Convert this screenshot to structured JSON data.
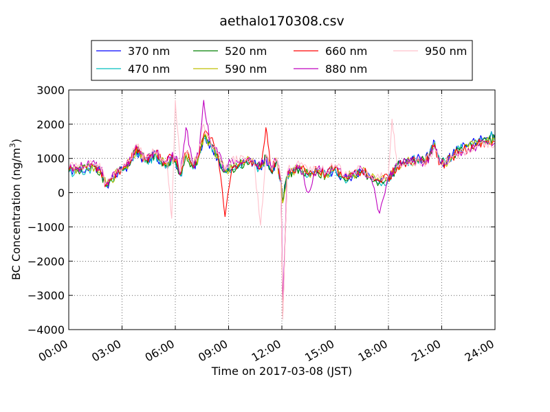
{
  "chart_data": {
    "type": "line",
    "title": "aethalo170308.csv",
    "xlabel": "Time on 2017-03-08 (JST)",
    "ylabel": "BC Concentration (ng/m",
    "ylabel_sup": "3",
    "ylabel_close": ")",
    "xlim": [
      0,
      24
    ],
    "ylim": [
      -4000,
      3000
    ],
    "x_ticks": [
      0,
      3,
      6,
      9,
      12,
      15,
      18,
      21,
      24
    ],
    "x_tick_labels": [
      "00:00",
      "03:00",
      "06:00",
      "09:00",
      "12:00",
      "15:00",
      "18:00",
      "21:00",
      "24:00"
    ],
    "y_ticks": [
      -4000,
      -3000,
      -2000,
      -1000,
      0,
      1000,
      2000,
      3000
    ],
    "y_tick_labels": [
      "−4000",
      "−3000",
      "−2000",
      "−1000",
      "0",
      "1000",
      "2000",
      "3000"
    ],
    "grid": true,
    "legend_placement": "top-center above plot",
    "keypoints_x": [
      0,
      0.5,
      1,
      1.5,
      1.8,
      2.1,
      2.4,
      2.8,
      3.2,
      3.5,
      3.8,
      4.0,
      4.3,
      4.6,
      4.9,
      5.2,
      5.5,
      5.8,
      6.0,
      6.3,
      6.6,
      7.0,
      7.3,
      7.6,
      8.0,
      8.4,
      8.8,
      9.2,
      9.6,
      10.0,
      10.4,
      10.8,
      11.1,
      11.4,
      11.7,
      11.95,
      12.05,
      12.3,
      12.6,
      13.0,
      13.5,
      14.0,
      14.5,
      15.0,
      15.5,
      16.0,
      16.5,
      17.0,
      17.5,
      18.0,
      18.2,
      18.5,
      18.8,
      19.2,
      19.6,
      20.0,
      20.3,
      20.6,
      20.9,
      21.2,
      21.6,
      22.0,
      22.5,
      23.0,
      23.5,
      24.0
    ],
    "series": [
      {
        "name": "370 nm",
        "color": "#0000ff",
        "values": [
          600,
          650,
          700,
          750,
          600,
          200,
          350,
          600,
          700,
          900,
          1200,
          1100,
          900,
          1000,
          1100,
          900,
          800,
          1000,
          900,
          500,
          1100,
          700,
          1000,
          1600,
          1400,
          1000,
          600,
          700,
          800,
          900,
          850,
          700,
          1000,
          600,
          900,
          300,
          -200,
          500,
          600,
          700,
          500,
          600,
          500,
          700,
          400,
          500,
          600,
          400,
          300,
          400,
          500,
          800,
          900,
          950,
          1000,
          950,
          1100,
          1500,
          900,
          900,
          1100,
          1300,
          1400,
          1500,
          1600,
          1700
        ]
      },
      {
        "name": "470 nm",
        "color": "#00bfbf",
        "values": [
          600,
          640,
          680,
          730,
          580,
          180,
          340,
          590,
          690,
          880,
          1180,
          1080,
          880,
          980,
          1080,
          880,
          790,
          980,
          890,
          480,
          1080,
          690,
          990,
          1580,
          1380,
          980,
          590,
          690,
          790,
          880,
          840,
          690,
          990,
          590,
          880,
          280,
          -250,
          480,
          590,
          690,
          480,
          590,
          480,
          690,
          390,
          480,
          590,
          390,
          280,
          380,
          480,
          780,
          880,
          930,
          980,
          930,
          1080,
          1480,
          880,
          880,
          1080,
          1280,
          1380,
          1480,
          1580,
          1680
        ]
      },
      {
        "name": "520 nm",
        "color": "#007f00",
        "values": [
          620,
          660,
          700,
          740,
          600,
          200,
          360,
          610,
          710,
          900,
          1250,
          1150,
          920,
          1020,
          1120,
          920,
          820,
          1020,
          920,
          520,
          1120,
          720,
          1020,
          1620,
          1420,
          1020,
          610,
          710,
          810,
          920,
          860,
          710,
          1020,
          610,
          920,
          320,
          -220,
          510,
          610,
          710,
          510,
          610,
          510,
          710,
          410,
          510,
          610,
          410,
          310,
          410,
          510,
          790,
          870,
          920,
          970,
          920,
          1070,
          1450,
          870,
          870,
          1070,
          1250,
          1350,
          1450,
          1550,
          1600
        ]
      },
      {
        "name": "590 nm",
        "color": "#bfbf00",
        "values": [
          640,
          680,
          720,
          760,
          620,
          220,
          380,
          630,
          730,
          920,
          1280,
          1180,
          940,
          1040,
          1140,
          940,
          840,
          1040,
          940,
          540,
          1140,
          740,
          1040,
          1640,
          1440,
          1040,
          630,
          730,
          830,
          940,
          880,
          730,
          1040,
          630,
          940,
          340,
          -300,
          530,
          630,
          730,
          530,
          630,
          530,
          730,
          430,
          530,
          630,
          430,
          330,
          430,
          530,
          780,
          860,
          910,
          960,
          910,
          1060,
          1430,
          860,
          860,
          1060,
          1230,
          1330,
          1430,
          1530,
          1550
        ]
      },
      {
        "name": "660 nm",
        "color": "#ff0000",
        "values": [
          660,
          700,
          740,
          780,
          640,
          240,
          400,
          650,
          750,
          940,
          1350,
          1200,
          960,
          1060,
          1160,
          960,
          860,
          1060,
          960,
          560,
          1160,
          760,
          1060,
          1700,
          1600,
          1100,
          -700,
          750,
          850,
          960,
          900,
          750,
          1900,
          650,
          960,
          360,
          -3600,
          550,
          650,
          750,
          550,
          650,
          550,
          750,
          450,
          550,
          650,
          450,
          350,
          450,
          550,
          770,
          850,
          900,
          950,
          900,
          1050,
          1400,
          850,
          850,
          1050,
          1200,
          1300,
          1400,
          1500,
          1500
        ]
      },
      {
        "name": "880 nm",
        "color": "#bf00bf",
        "values": [
          700,
          740,
          780,
          820,
          680,
          280,
          440,
          690,
          790,
          980,
          1400,
          1250,
          1000,
          1100,
          1200,
          1000,
          900,
          1100,
          1000,
          600,
          1900,
          800,
          1100,
          2700,
          1450,
          1150,
          650,
          1000,
          900,
          1000,
          950,
          800,
          1100,
          700,
          1000,
          400,
          -3200,
          600,
          700,
          800,
          0,
          700,
          600,
          800,
          500,
          600,
          700,
          500,
          -600,
          500,
          600,
          760,
          840,
          890,
          940,
          890,
          1040,
          1350,
          840,
          840,
          1040,
          1180,
          1280,
          1380,
          1480,
          1450
        ]
      },
      {
        "name": "950 nm",
        "color": "#ffc0cb",
        "values": [
          720,
          760,
          800,
          840,
          700,
          300,
          460,
          710,
          810,
          1000,
          1420,
          1270,
          1020,
          1120,
          1220,
          1020,
          920,
          -750,
          2700,
          620,
          1180,
          820,
          1120,
          2000,
          1470,
          1170,
          670,
          1020,
          920,
          1020,
          970,
          -950,
          1120,
          720,
          1020,
          420,
          -3700,
          620,
          720,
          820,
          620,
          720,
          620,
          820,
          520,
          620,
          720,
          520,
          420,
          520,
          2150,
          750,
          830,
          880,
          930,
          880,
          1030,
          1300,
          830,
          830,
          1030,
          1150,
          1250,
          1350,
          1450,
          1400
        ]
      }
    ]
  }
}
